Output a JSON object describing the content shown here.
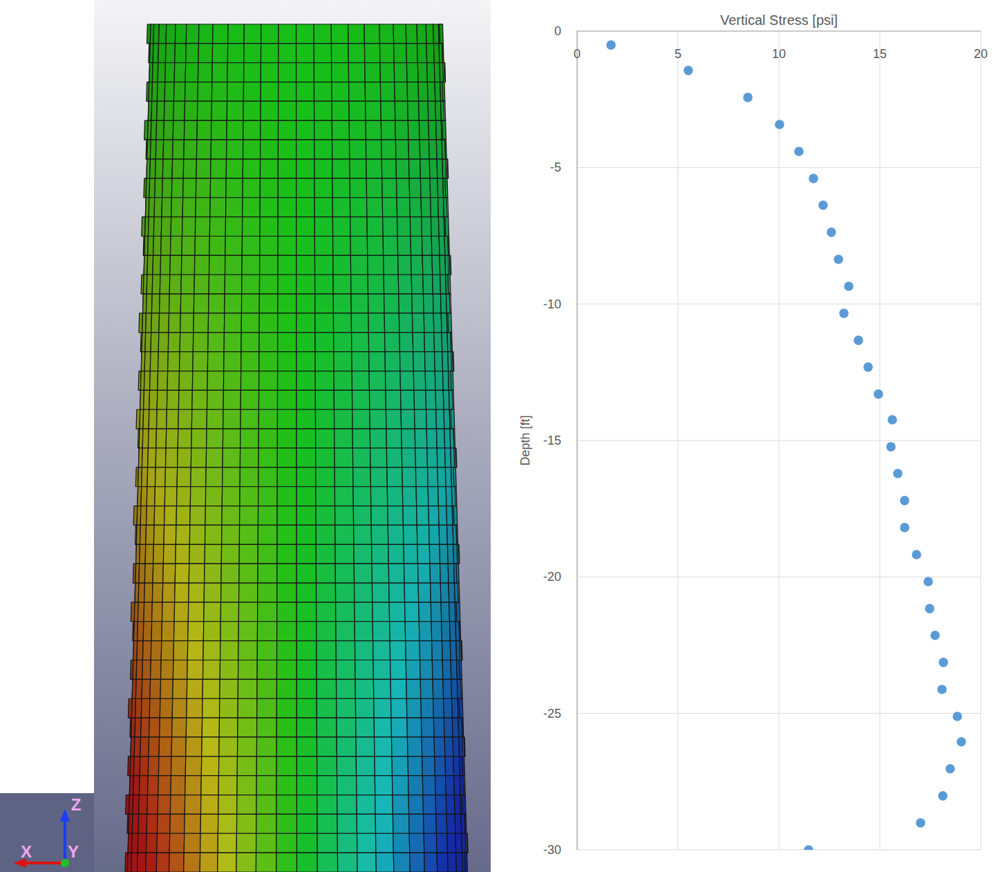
{
  "chart_data": {
    "type": "scatter",
    "title": "Vertical Stress [psi]",
    "ylabel": "Depth [ft]",
    "x": [
      1.68,
      5.51,
      8.46,
      10.03,
      10.99,
      11.71,
      12.19,
      12.6,
      12.95,
      13.46,
      13.22,
      13.94,
      14.42,
      14.93,
      15.62,
      15.55,
      15.89,
      16.23,
      16.23,
      16.82,
      17.4,
      17.47,
      17.74,
      18.15,
      18.08,
      18.84,
      19.04,
      18.49,
      18.12,
      17.02,
      11.47
    ],
    "values": [
      -0.51,
      -1.44,
      -2.43,
      -3.42,
      -4.41,
      -5.4,
      -6.38,
      -7.37,
      -8.36,
      -9.35,
      -10.34,
      -11.33,
      -12.31,
      -13.3,
      -14.24,
      -15.23,
      -16.21,
      -17.2,
      -18.19,
      -19.18,
      -20.17,
      -21.16,
      -22.14,
      -23.13,
      -24.12,
      -25.11,
      -26.04,
      -27.03,
      -28.02,
      -29.01,
      -30.0
    ],
    "color": "#5b9bd5",
    "marker": "circle",
    "xlim": [
      0,
      20
    ],
    "xticks": [
      0,
      5,
      10,
      15,
      20
    ],
    "ylim": [
      -30,
      0
    ],
    "yticks": [
      0,
      -5,
      -10,
      -15,
      -20,
      -25,
      -30
    ],
    "grid": true
  },
  "model_view": {
    "triad_labels": [
      "X",
      "Y",
      "Z"
    ]
  }
}
